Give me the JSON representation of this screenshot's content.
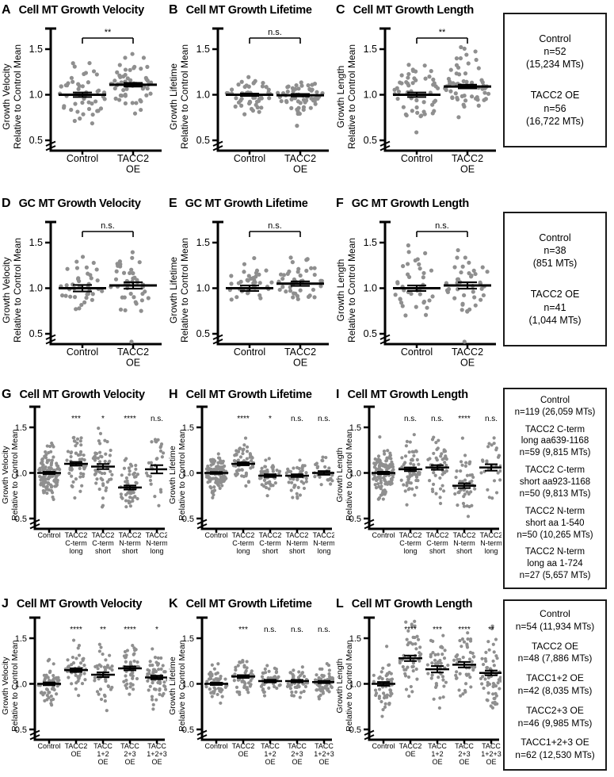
{
  "figure": {
    "background": "#ffffff",
    "dot_color": "#8f8f8f",
    "axis_color": "#000000",
    "text_color": "#000000"
  },
  "chart_data": {
    "type": "beeswarm",
    "y_axis": {
      "ticks": [
        "1.5",
        "1.0",
        "0.5"
      ],
      "tick_values": [
        1.5,
        1.0,
        0.5
      ],
      "break_below": 0.5,
      "ylim_top": 1.75
    },
    "rows": [
      {
        "panels": [
          {
            "letter": "A",
            "title": "Cell MT Growth Velocity",
            "ylabel": [
              "Growth Velocity",
              "Relative to Control Mean"
            ],
            "groups": [
              {
                "label": [
                  "Control"
                ],
                "mean": 1.0,
                "sem": 0.025,
                "n": 52,
                "sd": 0.17,
                "min": 0.6,
                "max": 1.43
              },
              {
                "label": [
                  "TACC2",
                  "OE"
                ],
                "mean": 1.11,
                "sem": 0.02,
                "n": 56,
                "sd": 0.16,
                "min": 0.7,
                "max": 1.52,
                "sig": "**"
              }
            ]
          },
          {
            "letter": "B",
            "title": "Cell MT Growth Lifetime",
            "ylabel": [
              "Growth Lifetime",
              "Relative to Control Mean"
            ],
            "groups": [
              {
                "label": [
                  "Control"
                ],
                "mean": 1.0,
                "sem": 0.013,
                "n": 52,
                "sd": 0.09,
                "min": 0.76,
                "max": 1.24
              },
              {
                "label": [
                  "TACC2",
                  "OE"
                ],
                "mean": 0.995,
                "sem": 0.013,
                "n": 56,
                "sd": 0.1,
                "min": 0.78,
                "max": 1.2,
                "sig": "n.s.",
                "outliers": [
                  0.66
                ]
              }
            ]
          },
          {
            "letter": "C",
            "title": "Cell MT Growth Length",
            "ylabel": [
              "Growth Length",
              "Relative to Control Mean"
            ],
            "groups": [
              {
                "label": [
                  "Control"
                ],
                "mean": 1.0,
                "sem": 0.025,
                "n": 52,
                "sd": 0.18,
                "min": 0.52,
                "max": 1.4
              },
              {
                "label": [
                  "TACC2",
                  "OE"
                ],
                "mean": 1.09,
                "sem": 0.02,
                "n": 56,
                "sd": 0.16,
                "min": 0.68,
                "max": 1.55,
                "sig": "**"
              }
            ]
          }
        ],
        "box": {
          "entries": [
            [
              "Control",
              "n=52",
              "(15,234 MTs)"
            ],
            [
              "TACC2 OE",
              "n=56",
              "(16,722 MTs)"
            ]
          ]
        }
      },
      {
        "panels": [
          {
            "letter": "D",
            "title": "GC MT Growth Velocity",
            "ylabel": [
              "Growth Velocity",
              "Relative to Control Mean"
            ],
            "groups": [
              {
                "label": [
                  "Control"
                ],
                "mean": 1.0,
                "sem": 0.035,
                "n": 38,
                "sd": 0.2,
                "min": 0.7,
                "max": 1.57
              },
              {
                "label": [
                  "TACC2",
                  "OE"
                ],
                "mean": 1.03,
                "sem": 0.035,
                "n": 41,
                "sd": 0.19,
                "min": 0.72,
                "max": 1.48,
                "sig": "n.s.",
                "outliers": [
                  0.44
                ]
              }
            ]
          },
          {
            "letter": "E",
            "title": "GC MT Growth Lifetime",
            "ylabel": [
              "Growth Lifetime",
              "Relative to Control Mean"
            ],
            "groups": [
              {
                "label": [
                  "Control"
                ],
                "mean": 1.0,
                "sem": 0.03,
                "n": 38,
                "sd": 0.17,
                "min": 0.75,
                "max": 1.55
              },
              {
                "label": [
                  "TACC2",
                  "OE"
                ],
                "mean": 1.05,
                "sem": 0.025,
                "n": 41,
                "sd": 0.14,
                "min": 0.76,
                "max": 1.38,
                "sig": "n.s."
              }
            ]
          },
          {
            "letter": "F",
            "title": "GC MT Growth Length",
            "ylabel": [
              "Growth Length",
              "Relative to Control Mean"
            ],
            "groups": [
              {
                "label": [
                  "Control"
                ],
                "mean": 1.0,
                "sem": 0.03,
                "n": 38,
                "sd": 0.19,
                "min": 0.66,
                "max": 1.57
              },
              {
                "label": [
                  "TACC2",
                  "OE"
                ],
                "mean": 1.03,
                "sem": 0.035,
                "n": 41,
                "sd": 0.2,
                "min": 0.7,
                "max": 1.58,
                "sig": "n.s.",
                "outliers": [
                  0.44
                ]
              }
            ]
          }
        ],
        "box": {
          "entries": [
            [
              "Control",
              "n=38",
              "(851 MTs)"
            ],
            [
              "TACC2 OE",
              "n=41",
              "(1,044 MTs)"
            ]
          ]
        }
      },
      {
        "panels": [
          {
            "letter": "G",
            "title": "Cell MT Growth Velocity",
            "ylabel": [
              "Growth Velocity",
              "Relative to Control Mean"
            ],
            "groups": [
              {
                "label": [
                  "Control"
                ],
                "mean": 1.0,
                "sem": 0.012,
                "n": 119,
                "sd": 0.13,
                "min": 0.63,
                "max": 1.47
              },
              {
                "label": [
                  "TACC2",
                  "C-term",
                  "long"
                ],
                "mean": 1.1,
                "sem": 0.02,
                "n": 59,
                "sd": 0.15,
                "min": 0.72,
                "max": 1.55,
                "sig": "***"
              },
              {
                "label": [
                  "TACC2",
                  "C-term",
                  "short"
                ],
                "mean": 1.07,
                "sem": 0.028,
                "n": 50,
                "sd": 0.2,
                "min": 0.6,
                "max": 1.68,
                "sig": "*"
              },
              {
                "label": [
                  "TACC2",
                  "N-term",
                  "short"
                ],
                "mean": 0.84,
                "sem": 0.022,
                "n": 50,
                "sd": 0.15,
                "min": 0.52,
                "max": 1.25,
                "sig": "****"
              },
              {
                "label": [
                  "TACC2",
                  "N-term",
                  "long"
                ],
                "mean": 1.04,
                "sem": 0.045,
                "n": 27,
                "sd": 0.18,
                "min": 0.62,
                "max": 1.45,
                "sig": "n.s."
              }
            ]
          },
          {
            "letter": "H",
            "title": "Cell MT Growth Lifetime",
            "ylabel": [
              "Growth Lifetime",
              "Relative to Control Mean"
            ],
            "groups": [
              {
                "label": [
                  "Control"
                ],
                "mean": 1.0,
                "sem": 0.01,
                "n": 119,
                "sd": 0.1,
                "min": 0.7,
                "max": 1.3
              },
              {
                "label": [
                  "TACC2",
                  "C-term",
                  "long"
                ],
                "mean": 1.1,
                "sem": 0.016,
                "n": 59,
                "sd": 0.12,
                "min": 0.85,
                "max": 1.55,
                "sig": "****"
              },
              {
                "label": [
                  "TACC2",
                  "C-term",
                  "short"
                ],
                "mean": 0.97,
                "sem": 0.015,
                "n": 50,
                "sd": 0.1,
                "min": 0.7,
                "max": 1.25,
                "sig": "*"
              },
              {
                "label": [
                  "TACC2",
                  "N-term",
                  "short"
                ],
                "mean": 0.97,
                "sem": 0.015,
                "n": 50,
                "sd": 0.11,
                "min": 0.72,
                "max": 1.3,
                "sig": "n.s."
              },
              {
                "label": [
                  "TACC2",
                  "N-term",
                  "long"
                ],
                "mean": 1.0,
                "sem": 0.02,
                "n": 27,
                "sd": 0.1,
                "min": 0.8,
                "max": 1.2,
                "sig": "n.s."
              }
            ]
          },
          {
            "letter": "I",
            "title": "Cell MT Growth Length",
            "ylabel": [
              "Growth Length",
              "Relative to Control Mean"
            ],
            "groups": [
              {
                "label": [
                  "Control"
                ],
                "mean": 1.0,
                "sem": 0.013,
                "n": 119,
                "sd": 0.15,
                "min": 0.6,
                "max": 1.5
              },
              {
                "label": [
                  "TACC2",
                  "C-term",
                  "long"
                ],
                "mean": 1.04,
                "sem": 0.02,
                "n": 59,
                "sd": 0.15,
                "min": 0.65,
                "max": 1.52,
                "sig": "n.s."
              },
              {
                "label": [
                  "TACC2",
                  "C-term",
                  "short"
                ],
                "mean": 1.06,
                "sem": 0.025,
                "n": 50,
                "sd": 0.17,
                "min": 0.65,
                "max": 1.62,
                "sig": "n.s."
              },
              {
                "label": [
                  "TACC2",
                  "N-term",
                  "short"
                ],
                "mean": 0.86,
                "sem": 0.026,
                "n": 50,
                "sd": 0.18,
                "min": 0.5,
                "max": 1.45,
                "sig": "****"
              },
              {
                "label": [
                  "TACC2",
                  "N-term",
                  "long"
                ],
                "mean": 1.06,
                "sem": 0.035,
                "n": 27,
                "sd": 0.17,
                "min": 0.7,
                "max": 1.6,
                "sig": "n.s."
              }
            ]
          }
        ],
        "box": {
          "entries": [
            [
              "Control",
              "n=119 (26,059 MTs)"
            ],
            [
              "TACC2 C-term",
              "long aa639-1168",
              "n=59 (9,815 MTs)"
            ],
            [
              "TACC2 C-term",
              "short aa923-1168",
              "n=50 (9,813 MTs)"
            ],
            [
              "TACC2 N-term",
              "short aa 1-540",
              "n=50 (10,265 MTs)"
            ],
            [
              "TACC2 N-term",
              "long aa 1-724",
              "n=27 (5,657 MTs)"
            ]
          ]
        }
      },
      {
        "panels": [
          {
            "letter": "J",
            "title": "Cell MT Growth Velocity",
            "ylabel": [
              "Growth Velocity",
              "Relative to Control Mean"
            ],
            "groups": [
              {
                "label": [
                  "Control"
                ],
                "mean": 1.0,
                "sem": 0.015,
                "n": 54,
                "sd": 0.11,
                "min": 0.58,
                "max": 1.4
              },
              {
                "label": [
                  "TACC2",
                  "OE"
                ],
                "mean": 1.15,
                "sem": 0.02,
                "n": 48,
                "sd": 0.13,
                "min": 0.8,
                "max": 1.52,
                "sig": "****"
              },
              {
                "label": [
                  "TACC",
                  "1+2",
                  "OE"
                ],
                "mean": 1.1,
                "sem": 0.026,
                "n": 42,
                "sd": 0.17,
                "min": 0.7,
                "max": 1.62,
                "sig": "**"
              },
              {
                "label": [
                  "TACC",
                  "2+3",
                  "OE"
                ],
                "mean": 1.17,
                "sem": 0.021,
                "n": 46,
                "sd": 0.15,
                "min": 0.82,
                "max": 1.62,
                "sig": "****"
              },
              {
                "label": [
                  "TACC",
                  "1+2+3",
                  "OE"
                ],
                "mean": 1.07,
                "sem": 0.019,
                "n": 62,
                "sd": 0.15,
                "min": 0.68,
                "max": 1.6,
                "sig": "*"
              }
            ]
          },
          {
            "letter": "K",
            "title": "Cell MT Growth Lifetime",
            "ylabel": [
              "Growth Lifetime",
              "Relative to Control Mean"
            ],
            "groups": [
              {
                "label": [
                  "Control"
                ],
                "mean": 1.0,
                "sem": 0.012,
                "n": 54,
                "sd": 0.09,
                "min": 0.78,
                "max": 1.5
              },
              {
                "label": [
                  "TACC2",
                  "OE"
                ],
                "mean": 1.08,
                "sem": 0.015,
                "n": 48,
                "sd": 0.1,
                "min": 0.85,
                "max": 1.35,
                "sig": "***"
              },
              {
                "label": [
                  "TACC",
                  "1+2",
                  "OE"
                ],
                "mean": 1.03,
                "sem": 0.014,
                "n": 42,
                "sd": 0.09,
                "min": 0.82,
                "max": 1.3,
                "sig": "n.s."
              },
              {
                "label": [
                  "TACC",
                  "2+3",
                  "OE"
                ],
                "mean": 1.03,
                "sem": 0.013,
                "n": 46,
                "sd": 0.09,
                "min": 0.85,
                "max": 1.3,
                "sig": "n.s."
              },
              {
                "label": [
                  "TACC",
                  "1+2+3",
                  "OE"
                ],
                "mean": 1.02,
                "sem": 0.012,
                "n": 62,
                "sd": 0.09,
                "min": 0.8,
                "max": 1.3,
                "sig": "n.s."
              }
            ]
          },
          {
            "letter": "L",
            "title": "Cell MT Growth Length",
            "ylabel": [
              "Growth Length",
              "Relative to Control Mean"
            ],
            "groups": [
              {
                "label": [
                  "Control"
                ],
                "mean": 1.0,
                "sem": 0.02,
                "n": 54,
                "sd": 0.15,
                "min": 0.6,
                "max": 1.62
              },
              {
                "label": [
                  "TACC2",
                  "OE"
                ],
                "mean": 1.28,
                "sem": 0.03,
                "n": 48,
                "sd": 0.19,
                "min": 0.75,
                "max": 1.7,
                "sig": "****"
              },
              {
                "label": [
                  "TACC",
                  "1+2",
                  "OE"
                ],
                "mean": 1.16,
                "sem": 0.035,
                "n": 42,
                "sd": 0.22,
                "min": 0.7,
                "max": 1.7,
                "sig": "***"
              },
              {
                "label": [
                  "TACC",
                  "2+3",
                  "OE"
                ],
                "mean": 1.21,
                "sem": 0.03,
                "n": 46,
                "sd": 0.19,
                "min": 0.75,
                "max": 1.7,
                "sig": "****"
              },
              {
                "label": [
                  "TACC",
                  "1+2+3",
                  "OE"
                ],
                "mean": 1.12,
                "sem": 0.026,
                "n": 62,
                "sd": 0.2,
                "min": 0.7,
                "max": 1.72,
                "sig": "**"
              }
            ]
          }
        ],
        "box": {
          "entries": [
            [
              "Control",
              "n=54 (11,934 MTs)"
            ],
            [
              "TACC2 OE",
              "n=48 (7,886 MTs)"
            ],
            [
              "TACC1+2 OE",
              "n=42 (8,035 MTs)"
            ],
            [
              "TACC2+3 OE",
              "n=46 (9,985 MTs)"
            ],
            [
              "TACC1+2+3 OE",
              "n=62 (12,530 MTs)"
            ]
          ]
        }
      }
    ]
  }
}
